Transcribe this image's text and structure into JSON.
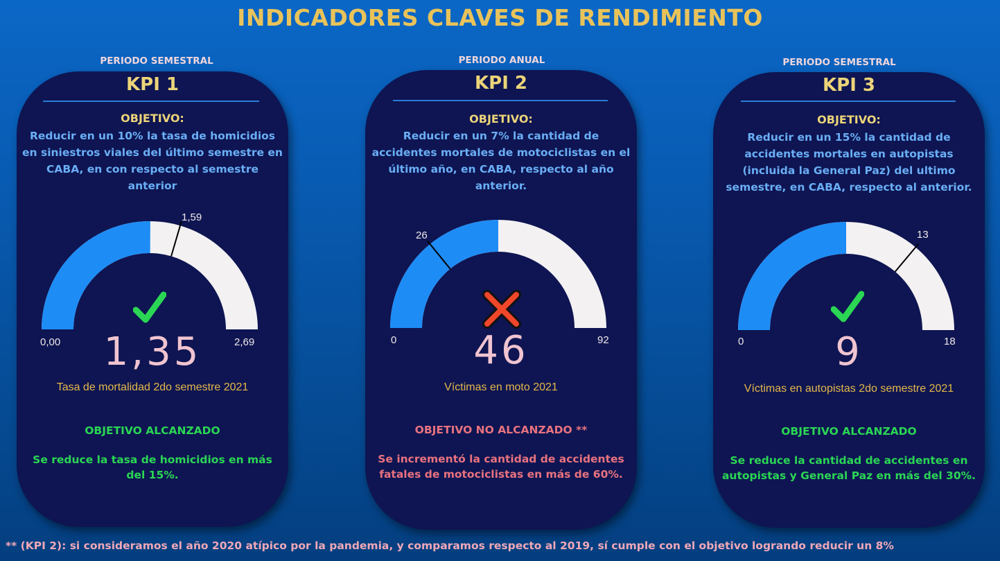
{
  "title": "INDICADORES CLAVES DE RENDIMIENTO",
  "kpis": [
    {
      "period": "PERIODO SEMESTRAL",
      "name": "KPI 1",
      "objective_label": "OBJETIVO:",
      "objective_lines": [
        "Reducir en un 10% la tasa de homicidios",
        "en siniestros viales del último semestre en",
        "CABA, en con respecto al semestre",
        "anterior"
      ],
      "gauge": {
        "min": 0,
        "max": 2.69,
        "value": 1.35,
        "target": 1.59,
        "min_label": "0,00",
        "max_label": "2,69",
        "target_label": "1,59"
      },
      "value_label": "1,35",
      "caption": "Tasa de mortalidad 2do semestre 2021",
      "icon": "check-icon",
      "status": "OBJETIVO ALCANZADO",
      "status_color": "#2bd654",
      "description_lines": [
        "Se reduce la tasa de homicidios en más",
        "del 15%."
      ]
    },
    {
      "period": "PERIODO ANUAL",
      "name": "KPI 2",
      "objective_label": "OBJETIVO:",
      "objective_lines": [
        "Reducir en un 7% la cantidad de",
        "accidentes mortales de motociclistas en el",
        "último año, en CABA, respecto al año",
        "anterior."
      ],
      "gauge": {
        "min": 0,
        "max": 92,
        "value": 46,
        "target": 26,
        "min_label": "0",
        "max_label": "92",
        "target_label": "26"
      },
      "value_label": "46",
      "caption": "Víctimas en moto 2021",
      "icon": "cross-icon",
      "status": "OBJETIVO NO ALCANZADO **",
      "status_color": "#e9727f",
      "description_lines": [
        "Se incrementó la cantidad de accidentes",
        "fatales de motociclistas en más de 60%."
      ]
    },
    {
      "period": "PERIODO SEMESTRAL",
      "name": "KPI 3",
      "objective_label": "OBJETIVO:",
      "objective_lines": [
        "Reducir en un 15% la cantidad de",
        "accidentes mortales en autopistas",
        "(incluida la General Paz) del ultimo",
        "semestre, en CABA,  respecto al anterior."
      ],
      "gauge": {
        "min": 0,
        "max": 18,
        "value": 9,
        "target": 13,
        "min_label": "0",
        "max_label": "18",
        "target_label": "13"
      },
      "value_label": "9",
      "caption": "Víctimas en autopistas 2do semestre 2021",
      "icon": "check-icon",
      "status": "OBJETIVO ALCANZADO",
      "status_color": "#2bd654",
      "description_lines": [
        "Se reduce la cantidad de accidentes en",
        "autopistas y General Paz en más del 30%."
      ]
    }
  ],
  "footnote": "** (KPI 2): si consideramos el año 2020 atípico por la pandemia, y comparamos respecto al 2019, sí cumple con el objetivo logrando reducir un 8%",
  "colors": {
    "gauge_fill": "#1e8cf5",
    "gauge_track": "#f3f1f2",
    "title": "#e9c35a"
  }
}
